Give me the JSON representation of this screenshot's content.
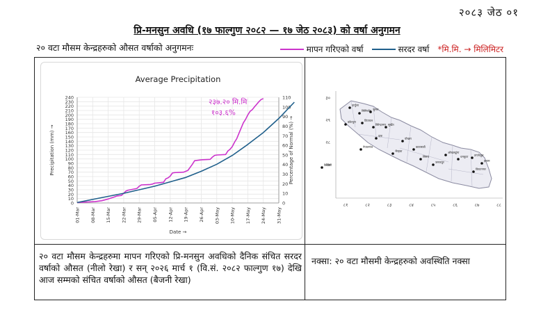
{
  "header": {
    "date": "२०८३ जेठ ०१",
    "title": "प्रि-मनसुन अवधि (१७ फाल्गुण २०८२ — १७ जेठ २०८३) को वर्षा अनुगमन",
    "subtitle": "२० वटा मौसम केन्द्रहरुको औसत वर्षाको अनुगमनः"
  },
  "legend": {
    "measured": "मापन गरिएको वर्षा",
    "normal": "सरदर वर्षा",
    "unit_note": "*मि.मि. → मिलिमिटर",
    "measured_color": "#cc33cc",
    "normal_color": "#1f5f8b"
  },
  "captions": {
    "chart": "२० वटा मौसम केन्द्रहरुमा मापन गरिएको प्रि-मनसुन अवधिको दैनिक संचित सरदर वर्षाको औसत (नीलो रेखा) र सन् २०२६ मार्च १ (वि.सं. २०८२ फाल्गुण १७) देखि आज सम्मको संचित वर्षाको औसत (बैजनी रेखा)",
    "map": "नक्सा: २० वटा मौसमी केन्द्रहरुको अवस्थिति नक्सा"
  },
  "map": {
    "lat_labels": [
      "३०",
      "२९",
      "२८",
      "२७"
    ],
    "lon_labels": [
      "८१",
      "८२",
      "८३",
      "८४",
      "८५",
      "८६",
      "८७",
      "८८"
    ],
    "stations": [
      "दार्चुला",
      "सिमिकोट",
      "जुम्ला",
      "डडेल्धुरा",
      "दिपायल",
      "बिरेन्द्रनगर",
      "सुर्खेत",
      "दाङ",
      "नेपालगंज",
      "भैरहवा",
      "पोखरा",
      "काठमाडौं",
      "सिमरा",
      "जनकपुर",
      "ओखलढुंगा",
      "धनकुटा",
      "ताप्लेजुङ",
      "इलाम",
      "विराटनगर",
      "कैलाली"
    ]
  },
  "chart_data": {
    "type": "line",
    "title": "Average Precipitation",
    "xlabel": "Date →",
    "ylabel": "Precipitation (mm) →",
    "y2label": "Percentage of Normal (%) →",
    "ylim": [
      0,
      240
    ],
    "y2lim": [
      0,
      110
    ],
    "yticks": [
      0,
      10,
      20,
      30,
      40,
      50,
      60,
      70,
      80,
      90,
      100,
      110,
      120,
      130,
      140,
      150,
      160,
      170,
      180,
      190,
      200,
      210,
      220,
      230,
      240
    ],
    "y2ticks": [
      0,
      10,
      20,
      30,
      40,
      50,
      60,
      70,
      80,
      90,
      100,
      110
    ],
    "x_tick_labels": [
      "01-Mar",
      "08-Mar",
      "15-Mar",
      "22-Mar",
      "29-Mar",
      "05-Apr",
      "12-Apr",
      "19-Apr",
      "26-Apr",
      "03-May",
      "10-May",
      "17-May",
      "24-May",
      "31-May"
    ],
    "total_days": 91,
    "annotation_value": "२३७.२० मि.मि",
    "annotation_percent": "१०३.६%",
    "grid": true,
    "series": [
      {
        "name": "मापन गरिएको वर्षा",
        "color": "#cc33cc",
        "points": [
          [
            0,
            1
          ],
          [
            4,
            2
          ],
          [
            8,
            3
          ],
          [
            11,
            5
          ],
          [
            14,
            9
          ],
          [
            17,
            14
          ],
          [
            18,
            16
          ],
          [
            20,
            17
          ],
          [
            21,
            22
          ],
          [
            22,
            27
          ],
          [
            23,
            29
          ],
          [
            25,
            31
          ],
          [
            27,
            33
          ],
          [
            28,
            38
          ],
          [
            29,
            41
          ],
          [
            33,
            42
          ],
          [
            34,
            43
          ],
          [
            35,
            45
          ],
          [
            37,
            46
          ],
          [
            39,
            47
          ],
          [
            40,
            55
          ],
          [
            41,
            57
          ],
          [
            42,
            61
          ],
          [
            43,
            68
          ],
          [
            44,
            69
          ],
          [
            48,
            70
          ],
          [
            50,
            74
          ],
          [
            52,
            88
          ],
          [
            53,
            96
          ],
          [
            56,
            98
          ],
          [
            60,
            99
          ],
          [
            61,
            104
          ],
          [
            62,
            108
          ],
          [
            63,
            109
          ],
          [
            67,
            110
          ],
          [
            68,
            118
          ],
          [
            69,
            122
          ],
          [
            70,
            128
          ],
          [
            71,
            138
          ],
          [
            72,
            146
          ],
          [
            73,
            158
          ],
          [
            74,
            170
          ],
          [
            75,
            182
          ],
          [
            76,
            190
          ],
          [
            77,
            200
          ],
          [
            78,
            208
          ],
          [
            79,
            212
          ],
          [
            80,
            218
          ],
          [
            81,
            224
          ],
          [
            82,
            230
          ],
          [
            83,
            235
          ],
          [
            84,
            237.2
          ]
        ]
      },
      {
        "name": "सरदर वर्षा",
        "color": "#1f5f8b",
        "points": [
          [
            0,
            1
          ],
          [
            7,
            8
          ],
          [
            14,
            15
          ],
          [
            21,
            22
          ],
          [
            28,
            30
          ],
          [
            35,
            38
          ],
          [
            42,
            48
          ],
          [
            49,
            58
          ],
          [
            56,
            72
          ],
          [
            63,
            88
          ],
          [
            70,
            108
          ],
          [
            77,
            133
          ],
          [
            84,
            160
          ],
          [
            91,
            192
          ],
          [
            98,
            229
          ]
        ]
      }
    ]
  }
}
